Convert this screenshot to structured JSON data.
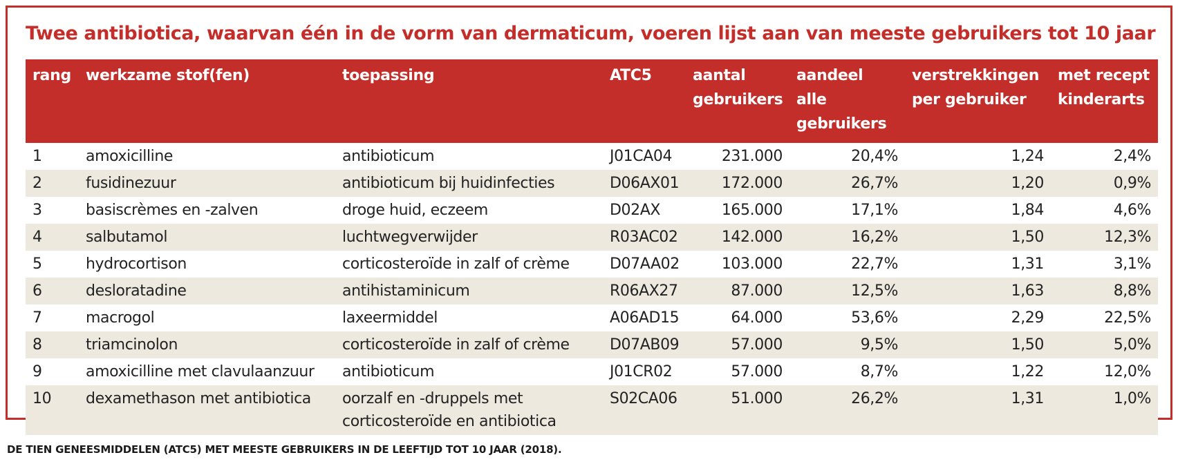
{
  "title": "Twee antibiotica, waarvan één in de vorm van dermaticum, voeren lijst aan van meeste gebruikers tot 10 jaar",
  "table": {
    "headers": [
      {
        "line1": "rang",
        "line2": ""
      },
      {
        "line1": "werkzame stof(fen)",
        "line2": ""
      },
      {
        "line1": "toepassing",
        "line2": ""
      },
      {
        "line1": "ATC5",
        "line2": ""
      },
      {
        "line1": "aantal",
        "line2": "gebruikers"
      },
      {
        "line1": "aandeel alle",
        "line2": "gebruikers"
      },
      {
        "line1": "verstrekkingen",
        "line2": "per gebruiker"
      },
      {
        "line1": "met recept",
        "line2": "kinderarts"
      }
    ],
    "rows": [
      {
        "rang": "1",
        "stof": "amoxicilline",
        "toepassing": "antibioticum",
        "toepassing2": "",
        "atc5": "J01CA04",
        "aantal": "231.000",
        "aandeel": "20,4%",
        "verstrekkingen": "1,24",
        "recept": "2,4%"
      },
      {
        "rang": "2",
        "stof": "fusidinezuur",
        "toepassing": "antibioticum bij huidinfecties",
        "toepassing2": "",
        "atc5": "D06AX01",
        "aantal": "172.000",
        "aandeel": "26,7%",
        "verstrekkingen": "1,20",
        "recept": "0,9%"
      },
      {
        "rang": "3",
        "stof": "basiscrèmes en -zalven",
        "toepassing": "droge huid, eczeem",
        "toepassing2": "",
        "atc5": "D02AX",
        "aantal": "165.000",
        "aandeel": "17,1%",
        "verstrekkingen": "1,84",
        "recept": "4,6%"
      },
      {
        "rang": "4",
        "stof": "salbutamol",
        "toepassing": "luchtwegverwijder",
        "toepassing2": "",
        "atc5": "R03AC02",
        "aantal": "142.000",
        "aandeel": "16,2%",
        "verstrekkingen": "1,50",
        "recept": "12,3%"
      },
      {
        "rang": "5",
        "stof": "hydrocortison",
        "toepassing": "corticosteroïde in zalf of crème",
        "toepassing2": "",
        "atc5": "D07AA02",
        "aantal": "103.000",
        "aandeel": "22,7%",
        "verstrekkingen": "1,31",
        "recept": "3,1%"
      },
      {
        "rang": "6",
        "stof": "desloratadine",
        "toepassing": "antihistaminicum",
        "toepassing2": "",
        "atc5": "R06AX27",
        "aantal": "87.000",
        "aandeel": "12,5%",
        "verstrekkingen": "1,63",
        "recept": "8,8%"
      },
      {
        "rang": "7",
        "stof": "macrogol",
        "toepassing": "laxeermiddel",
        "toepassing2": "",
        "atc5": "A06AD15",
        "aantal": "64.000",
        "aandeel": "53,6%",
        "verstrekkingen": "2,29",
        "recept": "22,5%"
      },
      {
        "rang": "8",
        "stof": "triamcinolon",
        "toepassing": "corticosteroïde in zalf of crème",
        "toepassing2": "",
        "atc5": "D07AB09",
        "aantal": "57.000",
        "aandeel": "9,5%",
        "verstrekkingen": "1,50",
        "recept": "5,0%"
      },
      {
        "rang": "9",
        "stof": "amoxicilline met clavulaanzuur",
        "toepassing": "antibioticum",
        "toepassing2": "",
        "atc5": "J01CR02",
        "aantal": "57.000",
        "aandeel": "8,7%",
        "verstrekkingen": "1,22",
        "recept": "12,0%"
      },
      {
        "rang": "10",
        "stof": "dexamethason met antibiotica",
        "toepassing": "oorzalf en -druppels met",
        "toepassing2": "corticosteroïde en antibiotica",
        "atc5": "S02CA06",
        "aantal": "51.000",
        "aandeel": "26,2%",
        "verstrekkingen": "1,31",
        "recept": "1,0%"
      }
    ]
  },
  "caption": "DE TIEN GENEESMIDDELEN (ATC5) MET MEESTE GEBRUIKERS IN DE LEEFTIJD TOT 10 JAAR (2018).",
  "colors": {
    "accent": "#c32e2a",
    "row_alt": "#ede9df",
    "header_text": "#ffffff"
  }
}
